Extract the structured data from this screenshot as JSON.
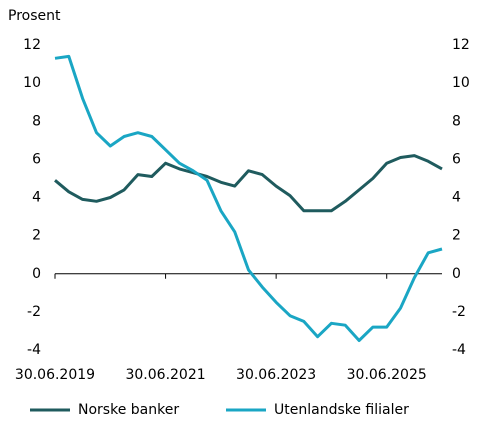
{
  "chart_data": {
    "type": "line",
    "y_label": "Prosent",
    "categories": [
      "30.06.2019",
      null,
      null,
      null,
      null,
      null,
      null,
      null,
      "30.06.2021",
      null,
      null,
      null,
      null,
      null,
      null,
      null,
      "30.06.2023",
      null,
      null,
      null,
      null,
      null,
      null,
      null,
      "30.06.2025",
      null,
      null,
      null,
      null
    ],
    "series": [
      {
        "name": "Norske banker",
        "color": "#1f5b5e",
        "values": [
          4.9,
          4.3,
          3.9,
          3.8,
          4.0,
          4.4,
          5.2,
          5.1,
          5.8,
          5.5,
          5.3,
          5.1,
          4.8,
          4.6,
          5.4,
          5.2,
          4.6,
          4.1,
          3.3,
          3.3,
          3.3,
          3.8,
          4.4,
          5.0,
          5.8,
          6.1,
          6.2,
          5.9,
          5.5
        ]
      },
      {
        "name": "Utenlandske filialer",
        "color": "#1aa6c4",
        "values": [
          11.3,
          11.4,
          9.2,
          7.4,
          6.7,
          7.2,
          7.4,
          7.2,
          6.5,
          5.8,
          5.4,
          4.9,
          3.3,
          2.2,
          0.2,
          -0.7,
          -1.5,
          -2.2,
          -2.5,
          -3.3,
          -2.6,
          -2.7,
          -3.5,
          -2.8,
          -2.8,
          -1.8,
          -0.2,
          1.1,
          1.3
        ]
      }
    ],
    "ylim": [
      -4,
      12
    ],
    "yticks": [
      -4,
      -2,
      0,
      2,
      4,
      6,
      8,
      10,
      12
    ],
    "right_axis_mirror": true,
    "grid": false
  }
}
